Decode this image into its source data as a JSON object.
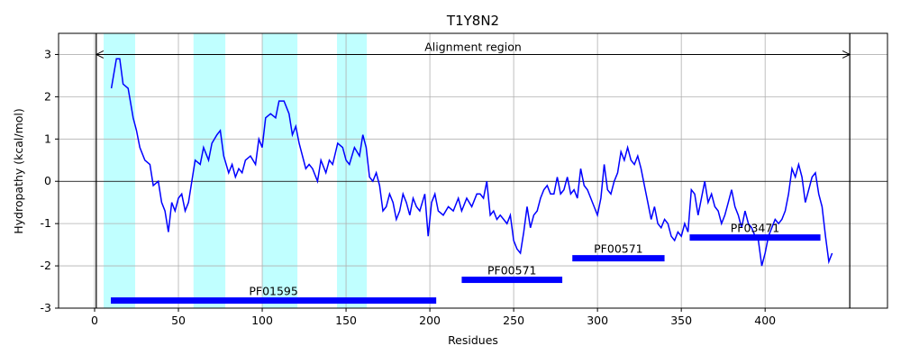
{
  "chart_data": {
    "type": "line",
    "title": "T1Y8N2",
    "x_label": "Residues",
    "y_label": "Hydropathy (kcal/mol)",
    "x": [
      10,
      13,
      15,
      17,
      20,
      23,
      25,
      27,
      30,
      33,
      35,
      38,
      40,
      42,
      44,
      46,
      48,
      50,
      52,
      54,
      56,
      58,
      60,
      63,
      65,
      68,
      70,
      73,
      75,
      77,
      80,
      82,
      84,
      86,
      88,
      90,
      93,
      96,
      98,
      100,
      102,
      105,
      108,
      110,
      113,
      116,
      118,
      120,
      122,
      124,
      126,
      128,
      130,
      133,
      135,
      138,
      140,
      142,
      145,
      148,
      150,
      152,
      155,
      158,
      160,
      162,
      164,
      166,
      168,
      170,
      172,
      174,
      176,
      178,
      180,
      182,
      184,
      186,
      188,
      190,
      192,
      194,
      197,
      199,
      201,
      203,
      205,
      208,
      211,
      214,
      217,
      219,
      222,
      225,
      228,
      230,
      232,
      234,
      236,
      238,
      240,
      242,
      244,
      246,
      248,
      250,
      252,
      254,
      256,
      258,
      260,
      262,
      264,
      266,
      268,
      270,
      272,
      274,
      276,
      278,
      280,
      282,
      284,
      286,
      288,
      290,
      292,
      294,
      296,
      298,
      300,
      302,
      304,
      306,
      308,
      310,
      312,
      314,
      316,
      318,
      320,
      322,
      324,
      326,
      328,
      330,
      332,
      334,
      336,
      338,
      340,
      342,
      344,
      346,
      348,
      350,
      352,
      354,
      356,
      358,
      360,
      362,
      364,
      366,
      368,
      370,
      372,
      374,
      376,
      378,
      380,
      382,
      384,
      386,
      388,
      390,
      392,
      394,
      396,
      398,
      400,
      402,
      404,
      406,
      408,
      410,
      412,
      414,
      416,
      418,
      420,
      422,
      424,
      426,
      428,
      430,
      432,
      434,
      436,
      438,
      440
    ],
    "values": [
      2.2,
      2.9,
      2.9,
      2.3,
      2.2,
      1.5,
      1.2,
      0.8,
      0.5,
      0.4,
      -0.1,
      0.0,
      -0.5,
      -0.7,
      -1.2,
      -0.5,
      -0.7,
      -0.4,
      -0.3,
      -0.7,
      -0.5,
      0.0,
      0.5,
      0.4,
      0.8,
      0.5,
      0.9,
      1.1,
      1.2,
      0.6,
      0.2,
      0.4,
      0.1,
      0.3,
      0.2,
      0.5,
      0.6,
      0.4,
      1.0,
      0.8,
      1.5,
      1.6,
      1.5,
      1.9,
      1.9,
      1.6,
      1.1,
      1.3,
      0.9,
      0.6,
      0.3,
      0.4,
      0.3,
      0.0,
      0.5,
      0.2,
      0.5,
      0.4,
      0.9,
      0.8,
      0.5,
      0.4,
      0.8,
      0.6,
      1.1,
      0.8,
      0.1,
      0.0,
      0.2,
      -0.1,
      -0.7,
      -0.6,
      -0.3,
      -0.5,
      -0.9,
      -0.7,
      -0.3,
      -0.5,
      -0.8,
      -0.4,
      -0.6,
      -0.7,
      -0.3,
      -1.3,
      -0.5,
      -0.3,
      -0.7,
      -0.8,
      -0.6,
      -0.7,
      -0.4,
      -0.7,
      -0.4,
      -0.6,
      -0.3,
      -0.3,
      -0.4,
      0.0,
      -0.8,
      -0.7,
      -0.9,
      -0.8,
      -0.9,
      -1.0,
      -0.8,
      -1.4,
      -1.6,
      -1.7,
      -1.2,
      -0.6,
      -1.1,
      -0.8,
      -0.7,
      -0.4,
      -0.2,
      -0.1,
      -0.3,
      -0.3,
      0.1,
      -0.3,
      -0.2,
      0.1,
      -0.3,
      -0.2,
      -0.4,
      0.3,
      -0.1,
      -0.2,
      -0.4,
      -0.6,
      -0.8,
      -0.4,
      0.4,
      -0.2,
      -0.3,
      0.0,
      0.2,
      0.7,
      0.5,
      0.8,
      0.5,
      0.4,
      0.6,
      0.3,
      -0.1,
      -0.5,
      -0.9,
      -0.6,
      -1.0,
      -1.1,
      -0.9,
      -1.0,
      -1.3,
      -1.4,
      -1.2,
      -1.3,
      -1.0,
      -1.2,
      -0.2,
      -0.3,
      -0.8,
      -0.4,
      0.0,
      -0.5,
      -0.3,
      -0.6,
      -0.7,
      -1.0,
      -0.8,
      -0.5,
      -0.2,
      -0.6,
      -0.8,
      -1.1,
      -0.7,
      -1.0,
      -1.1,
      -1.3,
      -1.4,
      -2.0,
      -1.7,
      -1.3,
      -1.1,
      -0.9,
      -1.0,
      -0.9,
      -0.7,
      -0.3,
      0.3,
      0.1,
      0.4,
      0.1,
      -0.5,
      -0.2,
      0.1,
      0.2,
      -0.3,
      -0.6,
      -1.3,
      -1.9,
      -1.7
    ],
    "color": "#0000ff",
    "xlim": [
      -21.5,
      473
    ],
    "ylim": [
      -3,
      3.5
    ],
    "xticks": [
      0,
      50,
      100,
      150,
      200,
      250,
      300,
      350,
      400
    ],
    "yticks": [
      -3,
      -2,
      -1,
      0,
      1,
      2,
      3
    ],
    "grid": true,
    "shaded_regions": [
      [
        5.4,
        24.2
      ],
      [
        59,
        78
      ],
      [
        100,
        121
      ],
      [
        144.6,
        162.4
      ]
    ],
    "shade_color": "#c0ffff",
    "vlines": [
      1,
      450.5
    ],
    "hline": 0,
    "annotation": "Alignment region",
    "annotation_y": 3,
    "domains": [
      {
        "name": "PF01595",
        "start": 9.7,
        "end": 203.8,
        "y": -2.82
      },
      {
        "name": "PF00571",
        "start": 219,
        "end": 279,
        "y": -2.33
      },
      {
        "name": "PF00571",
        "start": 285,
        "end": 340,
        "y": -1.82
      },
      {
        "name": "PF03471",
        "start": 355,
        "end": 433,
        "y": -1.33
      }
    ],
    "domain_color": "#0000ff"
  }
}
